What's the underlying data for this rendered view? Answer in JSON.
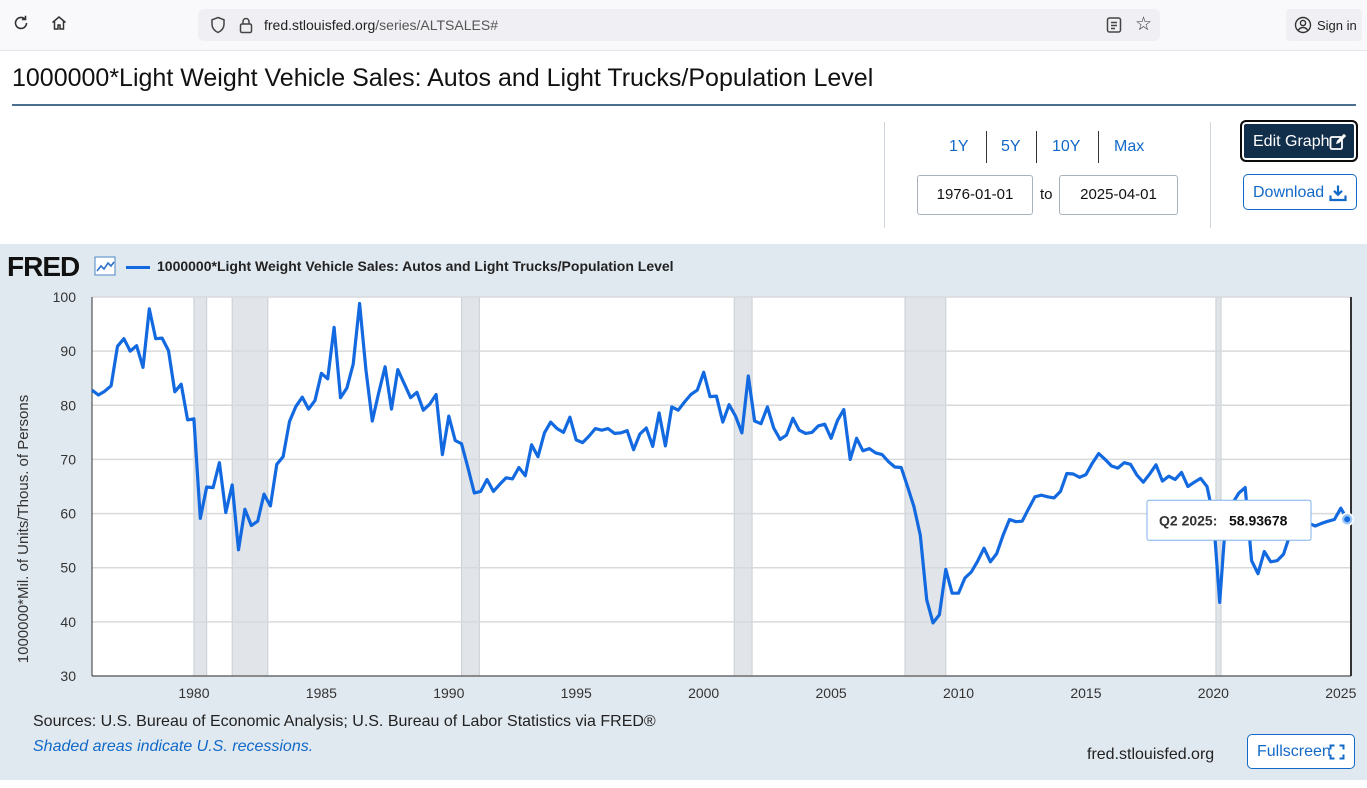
{
  "browser": {
    "url_domain": "fred.stlouisfed.org",
    "url_path": "/series/ALTSALES#",
    "signin_label": "Sign in"
  },
  "page": {
    "title": "1000000*Light Weight Vehicle Sales: Autos and Light Trucks/Population Level"
  },
  "controls": {
    "ranges": [
      "1Y",
      "5Y",
      "10Y",
      "Max"
    ],
    "start_date": "1976-01-01",
    "to_label": "to",
    "end_date": "2025-04-01",
    "edit_graph_label": "Edit Graph",
    "download_label": "Download"
  },
  "graph": {
    "logo_text": "FRED",
    "legend_label": "1000000*Light Weight Vehicle Sales: Autos and Light Trucks/Population Level",
    "line_color": "#1269e0",
    "sources": "Sources: U.S. Bureau of Economic Analysis; U.S. Bureau of Labor Statistics via FRED®",
    "recession_note": "Shaded areas indicate U.S. recessions.",
    "site": "fred.stlouisfed.org",
    "fullscreen_label": "Fullscreen"
  },
  "chart_data": {
    "type": "line",
    "title": "1000000*Light Weight Vehicle Sales: Autos and Light Trucks/Population Level",
    "ylabel": "1000000*Mil. of Units/Thous. of Persons",
    "xlabel": "",
    "xlim": [
      1976.0,
      2025.4
    ],
    "ylim": [
      30,
      100
    ],
    "yticks": [
      30,
      40,
      50,
      60,
      70,
      80,
      90,
      100
    ],
    "xticks": [
      1980,
      1985,
      1990,
      1995,
      2000,
      2005,
      2010,
      2015,
      2020,
      2025
    ],
    "recessions": [
      [
        1980.0,
        1980.5
      ],
      [
        1981.5,
        1982.9
      ],
      [
        1990.5,
        1991.2
      ],
      [
        2001.2,
        2001.9
      ],
      [
        2007.9,
        2009.5
      ],
      [
        2020.1,
        2020.3
      ]
    ],
    "tooltip": {
      "label": "Q2 2025:",
      "value": "58.93678",
      "x": 2025.25,
      "y": 58.94
    },
    "series": [
      {
        "name": "1000000*Light Weight Vehicle Sales: Autos and Light Trucks/Population Level",
        "color": "#1269e0",
        "points": [
          [
            1976.0,
            82.8
          ],
          [
            1976.25,
            81.9
          ],
          [
            1976.5,
            82.6
          ],
          [
            1976.75,
            83.6
          ],
          [
            1977.0,
            90.9
          ],
          [
            1977.25,
            92.3
          ],
          [
            1977.5,
            90.0
          ],
          [
            1977.75,
            91.0
          ],
          [
            1978.0,
            87.0
          ],
          [
            1978.25,
            97.8
          ],
          [
            1978.5,
            92.3
          ],
          [
            1978.75,
            92.4
          ],
          [
            1979.0,
            90.1
          ],
          [
            1979.25,
            82.5
          ],
          [
            1979.5,
            83.9
          ],
          [
            1979.75,
            77.3
          ],
          [
            1980.0,
            77.5
          ],
          [
            1980.25,
            59.1
          ],
          [
            1980.5,
            64.9
          ],
          [
            1980.75,
            64.8
          ],
          [
            1981.0,
            69.4
          ],
          [
            1981.25,
            60.2
          ],
          [
            1981.5,
            65.3
          ],
          [
            1981.75,
            53.3
          ],
          [
            1982.0,
            60.8
          ],
          [
            1982.25,
            57.8
          ],
          [
            1982.5,
            58.6
          ],
          [
            1982.75,
            63.6
          ],
          [
            1983.0,
            61.4
          ],
          [
            1983.25,
            69.1
          ],
          [
            1983.5,
            70.5
          ],
          [
            1983.75,
            77.0
          ],
          [
            1984.0,
            79.8
          ],
          [
            1984.25,
            81.5
          ],
          [
            1984.5,
            79.3
          ],
          [
            1984.75,
            80.9
          ],
          [
            1985.0,
            85.9
          ],
          [
            1985.25,
            84.9
          ],
          [
            1985.5,
            94.4
          ],
          [
            1985.75,
            81.4
          ],
          [
            1986.0,
            83.2
          ],
          [
            1986.25,
            87.6
          ],
          [
            1986.5,
            98.8
          ],
          [
            1986.75,
            86.4
          ],
          [
            1987.0,
            77.1
          ],
          [
            1987.25,
            82.3
          ],
          [
            1987.5,
            87.1
          ],
          [
            1987.75,
            79.3
          ],
          [
            1988.0,
            86.6
          ],
          [
            1988.25,
            84.0
          ],
          [
            1988.5,
            81.4
          ],
          [
            1988.75,
            82.4
          ],
          [
            1989.0,
            79.1
          ],
          [
            1989.25,
            80.2
          ],
          [
            1989.5,
            82.0
          ],
          [
            1989.75,
            70.9
          ],
          [
            1990.0,
            78.0
          ],
          [
            1990.25,
            73.5
          ],
          [
            1990.5,
            72.9
          ],
          [
            1990.75,
            68.5
          ],
          [
            1991.0,
            63.8
          ],
          [
            1991.25,
            64.1
          ],
          [
            1991.5,
            66.3
          ],
          [
            1991.75,
            64.1
          ],
          [
            1992.0,
            65.4
          ],
          [
            1992.25,
            66.6
          ],
          [
            1992.5,
            66.4
          ],
          [
            1992.75,
            68.5
          ],
          [
            1993.0,
            67.0
          ],
          [
            1993.25,
            72.7
          ],
          [
            1993.5,
            70.5
          ],
          [
            1993.75,
            74.9
          ],
          [
            1994.0,
            76.9
          ],
          [
            1994.25,
            75.7
          ],
          [
            1994.5,
            75.0
          ],
          [
            1994.75,
            77.8
          ],
          [
            1995.0,
            73.6
          ],
          [
            1995.25,
            73.1
          ],
          [
            1995.5,
            74.3
          ],
          [
            1995.75,
            75.7
          ],
          [
            1996.0,
            75.4
          ],
          [
            1996.25,
            75.7
          ],
          [
            1996.5,
            74.8
          ],
          [
            1996.75,
            74.9
          ],
          [
            1997.0,
            75.3
          ],
          [
            1997.25,
            71.8
          ],
          [
            1997.5,
            74.7
          ],
          [
            1997.75,
            75.8
          ],
          [
            1998.0,
            72.4
          ],
          [
            1998.25,
            78.6
          ],
          [
            1998.5,
            72.5
          ],
          [
            1998.75,
            79.7
          ],
          [
            1999.0,
            79.1
          ],
          [
            1999.25,
            80.6
          ],
          [
            1999.5,
            82.0
          ],
          [
            1999.75,
            82.8
          ],
          [
            2000.0,
            86.1
          ],
          [
            2000.25,
            81.6
          ],
          [
            2000.5,
            81.7
          ],
          [
            2000.75,
            76.9
          ],
          [
            2001.0,
            80.1
          ],
          [
            2001.25,
            78.0
          ],
          [
            2001.5,
            74.9
          ],
          [
            2001.75,
            85.4
          ],
          [
            2002.0,
            77.1
          ],
          [
            2002.25,
            76.6
          ],
          [
            2002.5,
            79.7
          ],
          [
            2002.75,
            75.8
          ],
          [
            2003.0,
            73.7
          ],
          [
            2003.25,
            74.5
          ],
          [
            2003.5,
            77.6
          ],
          [
            2003.75,
            75.4
          ],
          [
            2004.0,
            74.8
          ],
          [
            2004.25,
            75.0
          ],
          [
            2004.5,
            76.2
          ],
          [
            2004.75,
            76.5
          ],
          [
            2005.0,
            73.9
          ],
          [
            2005.25,
            77.2
          ],
          [
            2005.5,
            79.2
          ],
          [
            2005.75,
            70.0
          ],
          [
            2006.0,
            73.9
          ],
          [
            2006.25,
            71.6
          ],
          [
            2006.5,
            72.0
          ],
          [
            2006.75,
            71.2
          ],
          [
            2007.0,
            70.9
          ],
          [
            2007.25,
            69.6
          ],
          [
            2007.5,
            68.6
          ],
          [
            2007.75,
            68.5
          ],
          [
            2008.0,
            65.0
          ],
          [
            2008.25,
            61.3
          ],
          [
            2008.5,
            56.0
          ],
          [
            2008.75,
            44.1
          ],
          [
            2009.0,
            39.8
          ],
          [
            2009.25,
            41.3
          ],
          [
            2009.5,
            49.7
          ],
          [
            2009.75,
            45.3
          ],
          [
            2010.0,
            45.3
          ],
          [
            2010.25,
            48.1
          ],
          [
            2010.5,
            49.2
          ],
          [
            2010.75,
            51.2
          ],
          [
            2011.0,
            53.6
          ],
          [
            2011.25,
            51.1
          ],
          [
            2011.5,
            52.6
          ],
          [
            2011.75,
            56.0
          ],
          [
            2012.0,
            58.9
          ],
          [
            2012.25,
            58.5
          ],
          [
            2012.5,
            58.6
          ],
          [
            2012.75,
            60.9
          ],
          [
            2013.0,
            63.1
          ],
          [
            2013.25,
            63.4
          ],
          [
            2013.5,
            63.1
          ],
          [
            2013.75,
            62.9
          ],
          [
            2014.0,
            64.1
          ],
          [
            2014.25,
            67.4
          ],
          [
            2014.5,
            67.3
          ],
          [
            2014.75,
            66.7
          ],
          [
            2015.0,
            67.2
          ],
          [
            2015.25,
            69.3
          ],
          [
            2015.5,
            71.1
          ],
          [
            2015.75,
            70.0
          ],
          [
            2016.0,
            68.8
          ],
          [
            2016.25,
            68.4
          ],
          [
            2016.5,
            69.4
          ],
          [
            2016.75,
            69.1
          ],
          [
            2017.0,
            67.1
          ],
          [
            2017.25,
            65.8
          ],
          [
            2017.5,
            67.3
          ],
          [
            2017.75,
            69.0
          ],
          [
            2018.0,
            66.0
          ],
          [
            2018.25,
            66.9
          ],
          [
            2018.5,
            66.3
          ],
          [
            2018.75,
            67.6
          ],
          [
            2019.0,
            65.0
          ],
          [
            2019.25,
            65.8
          ],
          [
            2019.5,
            66.5
          ],
          [
            2019.75,
            65.0
          ],
          [
            2020.0,
            59.4
          ],
          [
            2020.25,
            43.6
          ],
          [
            2020.5,
            60.0
          ],
          [
            2020.75,
            61.9
          ],
          [
            2021.0,
            63.8
          ],
          [
            2021.25,
            64.8
          ],
          [
            2021.5,
            51.3
          ],
          [
            2021.75,
            48.9
          ],
          [
            2022.0,
            53.0
          ],
          [
            2022.25,
            51.1
          ],
          [
            2022.5,
            51.3
          ],
          [
            2022.75,
            52.5
          ],
          [
            2023.0,
            56.0
          ],
          [
            2023.25,
            57.9
          ],
          [
            2023.5,
            57.5
          ],
          [
            2023.75,
            58.2
          ],
          [
            2024.0,
            57.7
          ],
          [
            2024.25,
            58.2
          ],
          [
            2024.5,
            58.6
          ],
          [
            2024.75,
            58.9
          ],
          [
            2025.0,
            61.0
          ],
          [
            2025.25,
            58.94
          ]
        ]
      }
    ]
  }
}
